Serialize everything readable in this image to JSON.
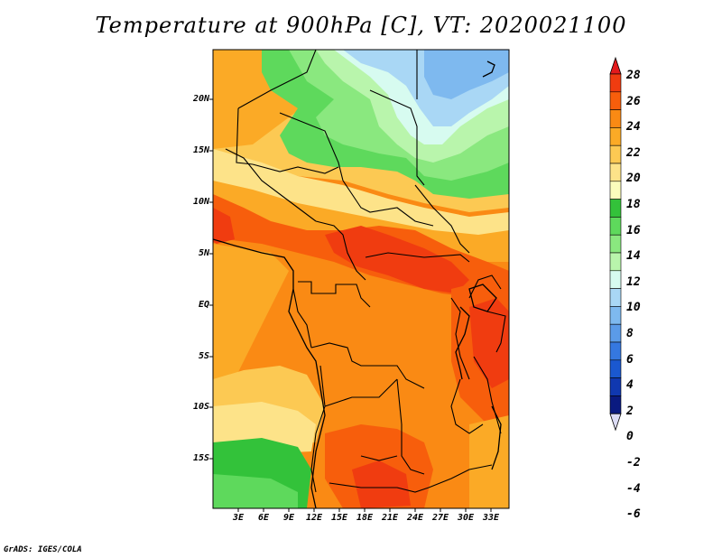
{
  "title": "Temperature at 900hPa [C], VT: 2020021100",
  "credit": "GrADS: IGES/COLA",
  "lat_ticks": [
    "20N",
    "15N",
    "10N",
    "5N",
    "EQ",
    "5S",
    "10S",
    "15S"
  ],
  "lon_ticks": [
    "3E",
    "6E",
    "9E",
    "12E",
    "15E",
    "18E",
    "21E",
    "24E",
    "27E",
    "30E",
    "33E"
  ],
  "colorbar": {
    "labels": [
      "28",
      "26",
      "24",
      "22",
      "20",
      "18",
      "16",
      "14",
      "12",
      "10",
      "8",
      "6",
      "4",
      "2",
      "0",
      "-2",
      "-4",
      "-6"
    ],
    "colors": [
      "#e31a1c",
      "#f03c10",
      "#f75e0c",
      "#fa8a14",
      "#fbaa26",
      "#fcc953",
      "#fde389",
      "#fbfcbc",
      "#33c23a",
      "#5ed95c",
      "#8ae87f",
      "#b9f5ac",
      "#d7fbf0",
      "#a9d7f5",
      "#7eb9ef",
      "#5b9be8",
      "#3578e0",
      "#1a58d0",
      "#1038b0",
      "#0a1a80"
    ],
    "lowest_color": "#dcdcf5"
  },
  "map": {
    "extent": "0E-35E, 19S-24N",
    "field": "Temperature at 900hPa (C)"
  }
}
